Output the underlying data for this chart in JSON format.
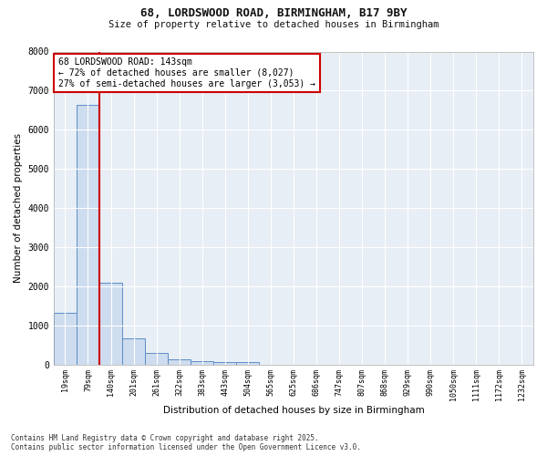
{
  "title_line1": "68, LORDSWOOD ROAD, BIRMINGHAM, B17 9BY",
  "title_line2": "Size of property relative to detached houses in Birmingham",
  "xlabel": "Distribution of detached houses by size in Birmingham",
  "ylabel": "Number of detached properties",
  "categories": [
    "19sqm",
    "79sqm",
    "140sqm",
    "201sqm",
    "261sqm",
    "322sqm",
    "383sqm",
    "443sqm",
    "504sqm",
    "565sqm",
    "625sqm",
    "686sqm",
    "747sqm",
    "807sqm",
    "868sqm",
    "929sqm",
    "990sqm",
    "1050sqm",
    "1111sqm",
    "1172sqm",
    "1232sqm"
  ],
  "values": [
    1320,
    6630,
    2090,
    670,
    290,
    130,
    75,
    50,
    50,
    0,
    0,
    0,
    0,
    0,
    0,
    0,
    0,
    0,
    0,
    0,
    0
  ],
  "bar_color": "#cddcee",
  "bar_edge_color": "#5b8dc8",
  "vline_x": 1.5,
  "vline_color": "#cc0000",
  "annotation_text": "68 LORDSWOOD ROAD: 143sqm\n← 72% of detached houses are smaller (8,027)\n27% of semi-detached houses are larger (3,053) →",
  "annotation_box_edge_color": "#cc0000",
  "annotation_box_fill": "#ffffff",
  "ylim": [
    0,
    8000
  ],
  "yticks": [
    0,
    1000,
    2000,
    3000,
    4000,
    5000,
    6000,
    7000,
    8000
  ],
  "background_color": "#ffffff",
  "plot_bg_color": "#e8eef5",
  "grid_color": "#ffffff",
  "footer_line1": "Contains HM Land Registry data © Crown copyright and database right 2025.",
  "footer_line2": "Contains public sector information licensed under the Open Government Licence v3.0."
}
